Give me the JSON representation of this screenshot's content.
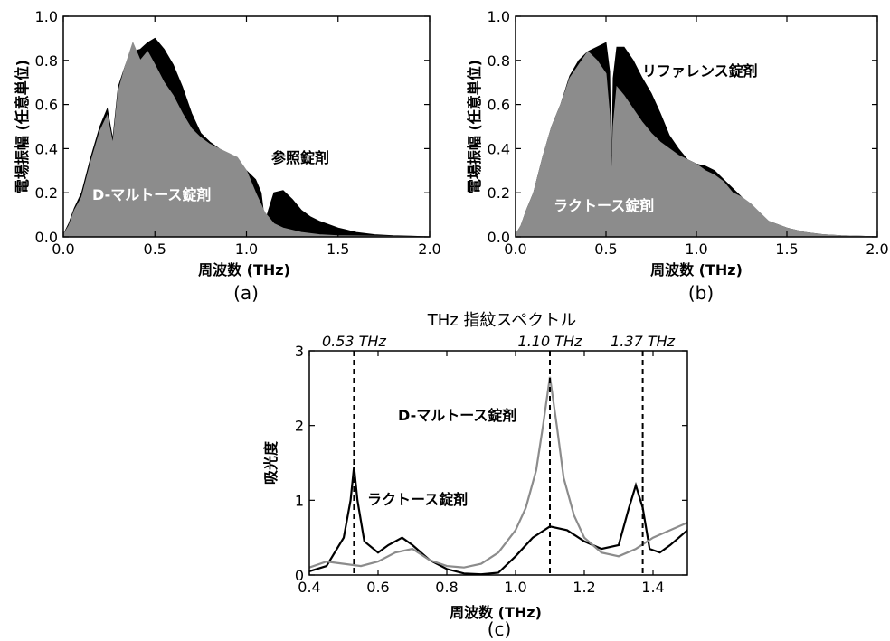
{
  "chart_data": [
    {
      "id": "a",
      "type": "area",
      "panel_label": "(a)",
      "xlabel": "周波数 (THz)",
      "ylabel": "電場振幅 (任意単位)",
      "xlim": [
        0.0,
        2.0
      ],
      "ylim": [
        0.0,
        1.0
      ],
      "xticks": [
        "0.0",
        "0.5",
        "1.0",
        "1.5",
        "2.0"
      ],
      "yticks": [
        "0.0",
        "0.2",
        "0.4",
        "0.6",
        "0.8",
        "1.0"
      ],
      "series": [
        {
          "name": "参照錠剤",
          "color": "#000000",
          "x": [
            0.0,
            0.03,
            0.06,
            0.1,
            0.15,
            0.2,
            0.24,
            0.27,
            0.3,
            0.34,
            0.38,
            0.42,
            0.46,
            0.5,
            0.55,
            0.6,
            0.65,
            0.7,
            0.75,
            0.8,
            0.85,
            0.9,
            0.95,
            1.0,
            1.05,
            1.08,
            1.1,
            1.12,
            1.15,
            1.2,
            1.25,
            1.3,
            1.35,
            1.4,
            1.5,
            1.6,
            1.7,
            1.8,
            1.9,
            2.0
          ],
          "y": [
            0.01,
            0.06,
            0.13,
            0.2,
            0.36,
            0.5,
            0.58,
            0.44,
            0.68,
            0.78,
            0.84,
            0.85,
            0.88,
            0.9,
            0.85,
            0.78,
            0.68,
            0.56,
            0.47,
            0.43,
            0.4,
            0.36,
            0.33,
            0.3,
            0.26,
            0.2,
            0.06,
            0.12,
            0.2,
            0.21,
            0.17,
            0.12,
            0.09,
            0.07,
            0.04,
            0.02,
            0.01,
            0.005,
            0.003,
            0.0
          ]
        },
        {
          "name": "D-マルトース錠剤",
          "color": "#8c8c8c",
          "x": [
            0.0,
            0.03,
            0.06,
            0.1,
            0.15,
            0.2,
            0.24,
            0.27,
            0.3,
            0.34,
            0.38,
            0.42,
            0.46,
            0.5,
            0.55,
            0.6,
            0.65,
            0.7,
            0.75,
            0.8,
            0.85,
            0.9,
            0.95,
            1.0,
            1.05,
            1.1,
            1.15,
            1.2,
            1.3,
            1.4,
            1.5,
            1.6,
            1.7,
            1.8,
            2.0
          ],
          "y": [
            0.01,
            0.05,
            0.12,
            0.18,
            0.34,
            0.48,
            0.55,
            0.42,
            0.66,
            0.78,
            0.88,
            0.8,
            0.84,
            0.78,
            0.7,
            0.64,
            0.56,
            0.49,
            0.45,
            0.42,
            0.4,
            0.38,
            0.36,
            0.3,
            0.2,
            0.11,
            0.06,
            0.04,
            0.02,
            0.01,
            0.005,
            0.004,
            0.003,
            0.002,
            0.0
          ]
        }
      ],
      "annotations": [
        "参照錠剤",
        "D-マルトース錠剤"
      ]
    },
    {
      "id": "b",
      "type": "area",
      "panel_label": "(b)",
      "xlabel": "周波数 (THz)",
      "ylabel": "電場振幅 (任意単位)",
      "xlim": [
        0.0,
        2.0
      ],
      "ylim": [
        0.0,
        1.0
      ],
      "xticks": [
        "0.0",
        "0.5",
        "1.0",
        "1.5",
        "2.0"
      ],
      "yticks": [
        "0.0",
        "0.2",
        "0.4",
        "0.6",
        "0.8",
        "1.0"
      ],
      "series": [
        {
          "name": "リファレンス錠剤",
          "color": "#000000",
          "x": [
            0.0,
            0.03,
            0.06,
            0.1,
            0.15,
            0.2,
            0.25,
            0.3,
            0.35,
            0.4,
            0.45,
            0.5,
            0.52,
            0.53,
            0.54,
            0.56,
            0.6,
            0.65,
            0.7,
            0.75,
            0.8,
            0.85,
            0.9,
            0.95,
            1.0,
            1.05,
            1.1,
            1.15,
            1.2,
            1.25,
            1.3,
            1.35,
            1.4,
            1.5,
            1.6,
            1.7,
            1.8,
            1.9,
            2.0
          ],
          "y": [
            0.01,
            0.05,
            0.12,
            0.2,
            0.36,
            0.5,
            0.6,
            0.73,
            0.8,
            0.84,
            0.86,
            0.88,
            0.75,
            0.25,
            0.72,
            0.86,
            0.86,
            0.8,
            0.72,
            0.65,
            0.56,
            0.46,
            0.4,
            0.35,
            0.33,
            0.32,
            0.3,
            0.26,
            0.22,
            0.18,
            0.14,
            0.1,
            0.07,
            0.04,
            0.02,
            0.01,
            0.005,
            0.003,
            0.0
          ]
        },
        {
          "name": "ラクトース錠剤",
          "color": "#8c8c8c",
          "x": [
            0.0,
            0.03,
            0.06,
            0.1,
            0.15,
            0.2,
            0.25,
            0.3,
            0.35,
            0.4,
            0.45,
            0.5,
            0.52,
            0.53,
            0.54,
            0.56,
            0.6,
            0.65,
            0.7,
            0.75,
            0.8,
            0.85,
            0.9,
            0.95,
            1.0,
            1.05,
            1.1,
            1.15,
            1.2,
            1.25,
            1.3,
            1.35,
            1.4,
            1.5,
            1.6,
            1.7,
            1.8,
            1.9,
            2.0
          ],
          "y": [
            0.01,
            0.05,
            0.12,
            0.2,
            0.36,
            0.5,
            0.6,
            0.72,
            0.78,
            0.84,
            0.8,
            0.74,
            0.55,
            0.25,
            0.5,
            0.68,
            0.64,
            0.58,
            0.52,
            0.47,
            0.43,
            0.4,
            0.37,
            0.35,
            0.33,
            0.3,
            0.28,
            0.25,
            0.2,
            0.18,
            0.15,
            0.11,
            0.07,
            0.04,
            0.02,
            0.01,
            0.005,
            0.003,
            0.0
          ]
        }
      ],
      "annotations": [
        "リファレンス錠剤",
        "ラクトース錠剤"
      ]
    },
    {
      "id": "c",
      "type": "line",
      "panel_label": "(c)",
      "title": "THz 指紋スペクトル",
      "xlabel": "周波数 (THz)",
      "ylabel": "吸光度",
      "xlim": [
        0.4,
        1.5
      ],
      "ylim": [
        0,
        3
      ],
      "xticks": [
        "0.4",
        "0.6",
        "0.8",
        "1.0",
        "1.2",
        "1.4"
      ],
      "yticks": [
        "0",
        "1",
        "2",
        "3"
      ],
      "peak_markers": [
        {
          "x": 0.53,
          "label": "0.53 THz"
        },
        {
          "x": 1.1,
          "label": "1.10 THz"
        },
        {
          "x": 1.37,
          "label": "1.37 THz"
        }
      ],
      "series": [
        {
          "name": "ラクトース錠剤",
          "color": "#000000",
          "x": [
            0.4,
            0.45,
            0.5,
            0.52,
            0.53,
            0.54,
            0.56,
            0.6,
            0.63,
            0.67,
            0.7,
            0.75,
            0.8,
            0.85,
            0.9,
            0.95,
            1.0,
            1.05,
            1.1,
            1.15,
            1.2,
            1.25,
            1.3,
            1.33,
            1.35,
            1.37,
            1.39,
            1.42,
            1.45,
            1.5
          ],
          "y": [
            0.05,
            0.12,
            0.5,
            1.0,
            1.45,
            1.0,
            0.45,
            0.3,
            0.4,
            0.5,
            0.4,
            0.2,
            0.08,
            0.02,
            0.01,
            0.03,
            0.25,
            0.5,
            0.65,
            0.6,
            0.45,
            0.35,
            0.4,
            0.9,
            1.2,
            0.9,
            0.35,
            0.3,
            0.4,
            0.6
          ]
        },
        {
          "name": "D-マルトース錠剤",
          "color": "#8c8c8c",
          "x": [
            0.4,
            0.45,
            0.5,
            0.55,
            0.6,
            0.65,
            0.7,
            0.75,
            0.8,
            0.85,
            0.9,
            0.95,
            1.0,
            1.03,
            1.06,
            1.08,
            1.1,
            1.12,
            1.14,
            1.17,
            1.2,
            1.25,
            1.3,
            1.35,
            1.4,
            1.45,
            1.5
          ],
          "y": [
            0.1,
            0.18,
            0.15,
            0.12,
            0.18,
            0.3,
            0.35,
            0.2,
            0.12,
            0.1,
            0.15,
            0.3,
            0.6,
            0.9,
            1.4,
            2.0,
            2.65,
            2.0,
            1.3,
            0.8,
            0.5,
            0.3,
            0.25,
            0.35,
            0.5,
            0.6,
            0.7
          ]
        }
      ],
      "annotations": [
        "D-マルトース錠剤",
        "ラクトース錠剤"
      ]
    }
  ]
}
